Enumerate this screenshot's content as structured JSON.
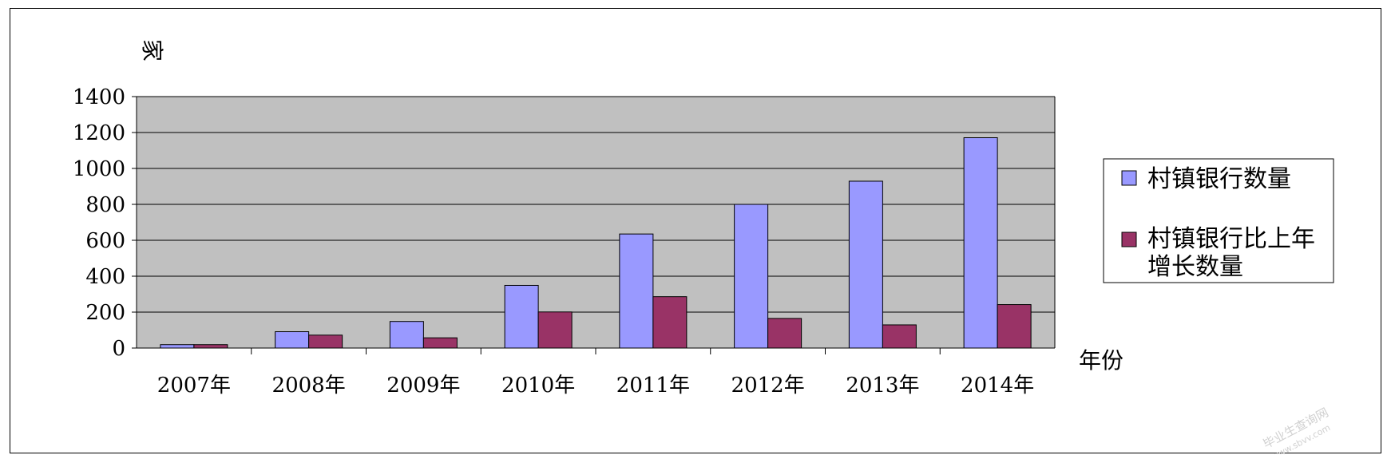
{
  "chart_data": {
    "type": "bar",
    "title": "",
    "xlabel": "年份",
    "ylabel": "家",
    "ylim": [
      0,
      1400
    ],
    "yticks": [
      0,
      200,
      400,
      600,
      800,
      1000,
      1200,
      1400
    ],
    "grid": true,
    "legend_position": "right",
    "categories": [
      "2007年",
      "2008年",
      "2009年",
      "2010年",
      "2011年",
      "2012年",
      "2013年",
      "2014年"
    ],
    "series": [
      {
        "name": "村镇银行数量",
        "color": "#9999ff",
        "values": [
          19,
          91,
          148,
          349,
          635,
          800,
          929,
          1171
        ]
      },
      {
        "name_lines": [
          "村镇银行比上年",
          "增长数量"
        ],
        "color": "#993366",
        "values": [
          19,
          72,
          57,
          201,
          286,
          165,
          129,
          242
        ]
      }
    ],
    "plot_background": "#c0c0c0"
  },
  "watermark": {
    "line1": "毕业生查询网",
    "line2": "www.sbvv.com"
  }
}
